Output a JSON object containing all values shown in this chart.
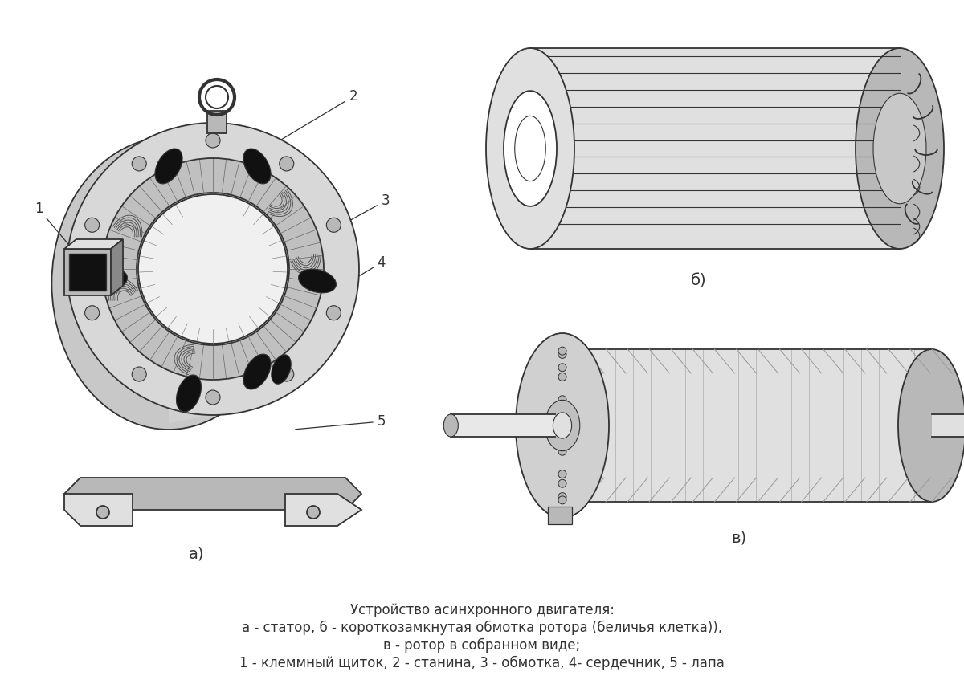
{
  "title_line1": "Устройство асинхронного двигателя:",
  "title_line2": "а - статор, б - короткозамкнутая обмотка ротора (беличья клетка)),",
  "title_line3": "в - ротор в собранном виде;",
  "title_line4": "1 - клеммный щиток, 2 - станина, 3 - обмотка, 4- сердечник, 5 - лапа",
  "label_a": "а)",
  "label_b": "б)",
  "label_v": "в)",
  "bg_color": "#ffffff",
  "line_color": "#333333",
  "fill_light": "#e0e0e0",
  "fill_mid": "#b8b8b8",
  "fill_dark": "#888888",
  "fill_black": "#111111",
  "fill_white": "#ffffff",
  "font_size_label": 12,
  "font_size_number": 12,
  "title_font_size": 12
}
